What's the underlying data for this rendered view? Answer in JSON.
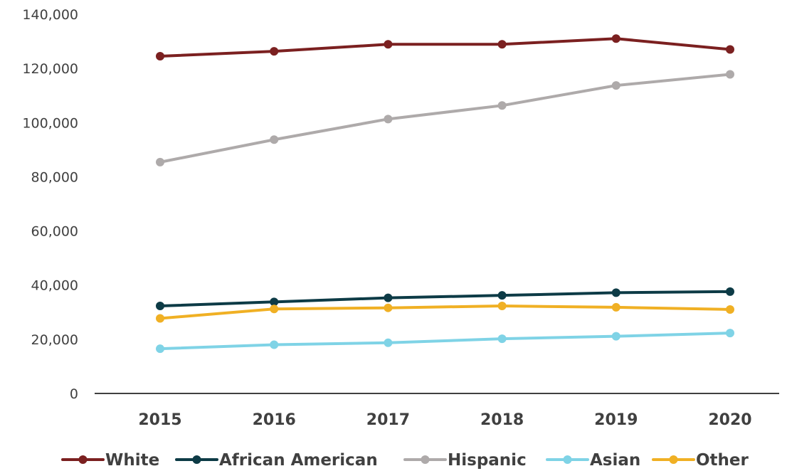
{
  "chart_data": {
    "type": "line",
    "title": "",
    "xlabel": "",
    "ylabel": "",
    "categories": [
      "2015",
      "2016",
      "2017",
      "2018",
      "2019",
      "2020"
    ],
    "ylim": [
      0,
      140000
    ],
    "yticks": [
      0,
      20000,
      40000,
      60000,
      80000,
      100000,
      120000,
      140000
    ],
    "ytick_labels": [
      "0",
      "20,000",
      "40,000",
      "60,000",
      "80,000",
      "100,000",
      "120,000",
      "140,000"
    ],
    "grid": false,
    "legend_position": "bottom",
    "series": [
      {
        "name": "White",
        "color": "#7b2020",
        "values": [
          124500,
          126300,
          128900,
          128900,
          131000,
          127000
        ]
      },
      {
        "name": "African American",
        "color": "#0d3b46",
        "values": [
          32300,
          33800,
          35300,
          36200,
          37200,
          37600
        ]
      },
      {
        "name": "Hispanic",
        "color": "#aeaaaa",
        "values": [
          85400,
          93700,
          101300,
          106300,
          113700,
          117800
        ]
      },
      {
        "name": "Asian",
        "color": "#7fd3e6",
        "values": [
          16500,
          18000,
          18700,
          20200,
          21100,
          22300
        ]
      },
      {
        "name": "Other",
        "color": "#f0b024",
        "values": [
          27700,
          31200,
          31600,
          32300,
          31800,
          31000
        ]
      }
    ]
  }
}
